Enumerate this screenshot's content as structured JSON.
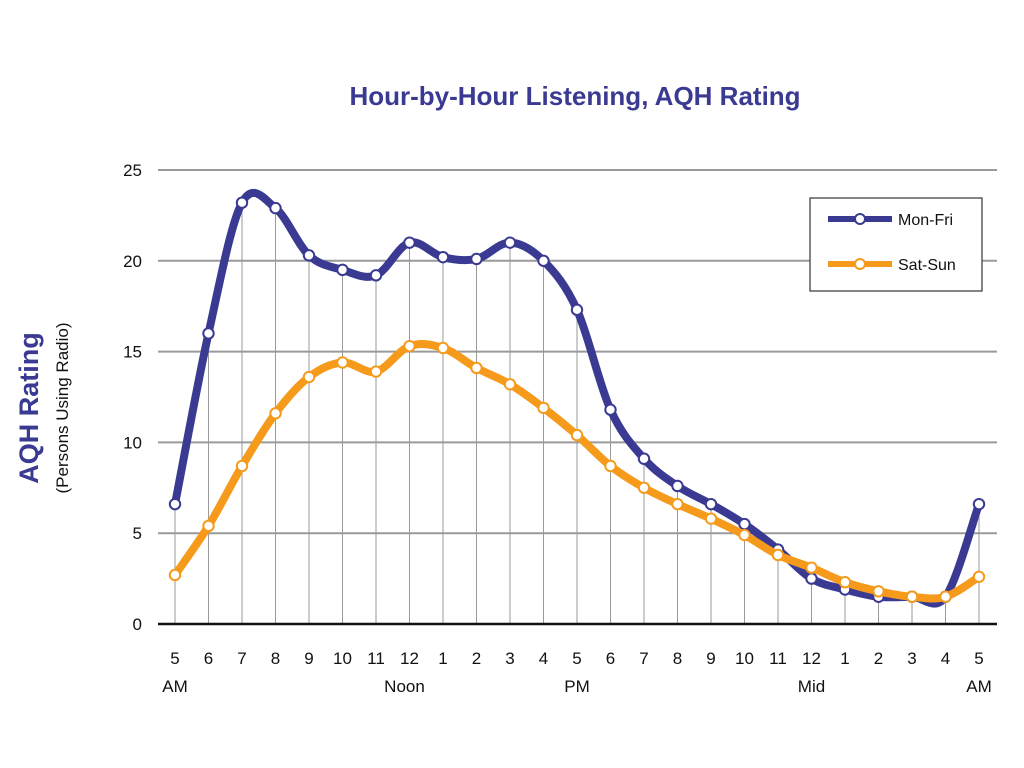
{
  "chart_data": {
    "type": "line",
    "title": "Hour-by-Hour Listening, AQH Rating",
    "ylabel": "AQH Rating",
    "ylabel_sub": "(Persons Using Radio)",
    "xlabel": "",
    "ylim": [
      0,
      25
    ],
    "yticks": [
      0,
      5,
      10,
      15,
      20,
      25
    ],
    "grid": "horizontal",
    "legend_position": "top-right",
    "categories": [
      "5",
      "6",
      "7",
      "8",
      "9",
      "10",
      "11",
      "12",
      "1",
      "2",
      "3",
      "4",
      "5",
      "6",
      "7",
      "8",
      "9",
      "10",
      "11",
      "12",
      "1",
      "2",
      "3",
      "4",
      "5"
    ],
    "category_sublabels": [
      "AM",
      "",
      "",
      "",
      "",
      "",
      "",
      "Noon",
      "",
      "",
      "",
      "",
      "PM",
      "",
      "",
      "",
      "",
      "",
      "",
      "Mid",
      "",
      "",
      "",
      "",
      "AM"
    ],
    "series": [
      {
        "name": "Mon-Fri",
        "color": "#3a3a93",
        "values": [
          6.6,
          16.0,
          23.2,
          22.9,
          20.3,
          19.5,
          19.2,
          21.0,
          20.2,
          20.1,
          21.0,
          20.0,
          17.3,
          11.8,
          9.1,
          7.6,
          6.6,
          5.5,
          4.1,
          2.5,
          1.9,
          1.5,
          1.5,
          1.5,
          6.6
        ]
      },
      {
        "name": "Sat-Sun",
        "color": "#f59a1b",
        "values": [
          2.7,
          5.4,
          8.7,
          11.6,
          13.6,
          14.4,
          13.9,
          15.3,
          15.2,
          14.1,
          13.2,
          11.9,
          10.4,
          8.7,
          7.5,
          6.6,
          5.8,
          4.9,
          3.8,
          3.1,
          2.3,
          1.8,
          1.5,
          1.5,
          2.6
        ]
      }
    ]
  }
}
